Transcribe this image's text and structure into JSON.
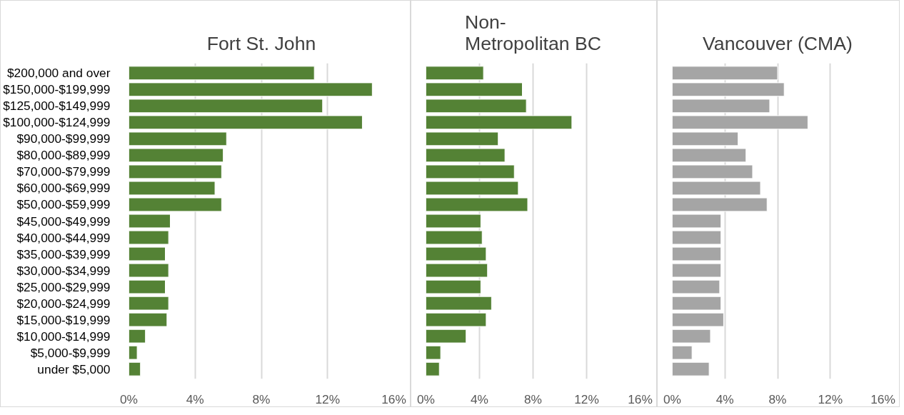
{
  "chart_data": [
    {
      "type": "bar",
      "orientation": "horizontal",
      "title": "Fort St. John",
      "categories": [
        "$200,000 and over",
        "$150,000-$199,999",
        "$125,000-$149,999",
        "$100,000-$124,999",
        "$90,000-$99,999",
        "$80,000-$89,999",
        "$70,000-$79,999",
        "$60,000-$69,999",
        "$50,000-$59,999",
        "$45,000-$49,999",
        "$40,000-$44,999",
        "$35,000-$39,999",
        "$30,000-$34,999",
        "$25,000-$29,999",
        "$20,000-$24,999",
        "$15,000-$19,999",
        "$10,000-$14,999",
        "$5,000-$9,999",
        "under $5,000"
      ],
      "values": [
        11.2,
        14.7,
        11.7,
        14.1,
        5.9,
        5.7,
        5.6,
        5.2,
        5.6,
        2.5,
        2.4,
        2.2,
        2.4,
        2.2,
        2.4,
        2.3,
        1.0,
        0.5,
        0.7
      ],
      "color": "#548235",
      "xlim": [
        0,
        16
      ],
      "xticks": [
        {
          "value": 0,
          "label": "0%"
        },
        {
          "value": 4,
          "label": "4%"
        },
        {
          "value": 8,
          "label": "8%"
        },
        {
          "value": 12,
          "label": "12%"
        },
        {
          "value": 16,
          "label": "16%"
        }
      ],
      "grid": "x"
    },
    {
      "type": "bar",
      "orientation": "horizontal",
      "title": "Non-Metropolitan BC",
      "categories": [
        null,
        null,
        null,
        null,
        null,
        null,
        null,
        null,
        null,
        null,
        null,
        null,
        null,
        null,
        null,
        null,
        null,
        null,
        null
      ],
      "values": [
        4.3,
        7.2,
        7.5,
        10.9,
        5.4,
        5.9,
        6.6,
        6.9,
        7.6,
        4.1,
        4.2,
        4.5,
        4.6,
        4.1,
        4.9,
        4.5,
        3.0,
        1.1,
        1.0
      ],
      "color": "#548235",
      "xlim": [
        0,
        16
      ],
      "xticks": [
        {
          "value": 0,
          "label": "0%"
        },
        {
          "value": 4,
          "label": "4%"
        },
        {
          "value": 8,
          "label": "8%"
        },
        {
          "value": 12,
          "label": "12%"
        },
        {
          "value": 16,
          "label": "16%"
        }
      ],
      "grid": "x",
      "tick_labels": "x"
    },
    {
      "type": "bar",
      "orientation": "horizontal",
      "title": "Vancouver (CMA)",
      "categories": [
        null,
        null,
        null,
        null,
        null,
        null,
        null,
        null,
        null,
        null,
        null,
        null,
        null,
        null,
        null,
        null,
        null,
        null,
        null
      ],
      "values": [
        8.0,
        8.5,
        7.4,
        10.3,
        5.0,
        5.6,
        6.1,
        6.7,
        7.2,
        3.7,
        3.7,
        3.7,
        3.7,
        3.6,
        3.7,
        3.9,
        2.9,
        1.5,
        2.8
      ],
      "color": "#a5a5a5",
      "xlim": [
        0,
        16
      ],
      "xticks": [
        {
          "value": 0,
          "label": "0%"
        },
        {
          "value": 4,
          "label": "4%"
        },
        {
          "value": 8,
          "label": "8%"
        },
        {
          "value": 12,
          "label": "12%"
        },
        {
          "value": 16,
          "label": "16%"
        }
      ],
      "grid": "x",
      "tick_labels": "x"
    }
  ]
}
